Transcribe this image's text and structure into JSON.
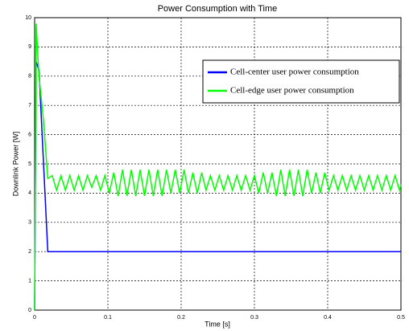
{
  "chart_data": {
    "type": "line",
    "title": "Power Consumption with Time",
    "xlabel": "Time [s]",
    "ylabel": "Downlink Power [W]",
    "xlim": [
      0,
      0.5
    ],
    "ylim": [
      0,
      10
    ],
    "xticks": [
      0,
      0.1,
      0.2,
      0.3,
      0.4,
      0.5
    ],
    "yticks": [
      0,
      1,
      2,
      3,
      4,
      5,
      6,
      7,
      8,
      9,
      10
    ],
    "grid": true,
    "legend": "upper right",
    "series": [
      {
        "name": "Cell-center user power consumption",
        "color": "#0000ff",
        "x": [
          0,
          0.002,
          0.006,
          0.018,
          0.5
        ],
        "values": [
          0,
          8.5,
          8.2,
          2,
          2
        ]
      },
      {
        "name": "Cell-edge user power consumption",
        "color": "#00ff00",
        "x": [
          0,
          0.002,
          0.006,
          0.012,
          0.018,
          0.024,
          0.03,
          0.036,
          0.042,
          0.048,
          0.054,
          0.06,
          0.066,
          0.072,
          0.078,
          0.084,
          0.09,
          0.096,
          0.102,
          0.108,
          0.114,
          0.12,
          0.126,
          0.132,
          0.138,
          0.144,
          0.15,
          0.156,
          0.162,
          0.168,
          0.174,
          0.18,
          0.186,
          0.192,
          0.198,
          0.204,
          0.21,
          0.216,
          0.222,
          0.228,
          0.234,
          0.24,
          0.246,
          0.252,
          0.258,
          0.264,
          0.27,
          0.276,
          0.282,
          0.288,
          0.294,
          0.3,
          0.306,
          0.312,
          0.318,
          0.324,
          0.33,
          0.336,
          0.342,
          0.348,
          0.354,
          0.36,
          0.366,
          0.372,
          0.378,
          0.384,
          0.39,
          0.396,
          0.402,
          0.408,
          0.414,
          0.42,
          0.426,
          0.432,
          0.438,
          0.444,
          0.45,
          0.456,
          0.462,
          0.468,
          0.474,
          0.48,
          0.486,
          0.492,
          0.498,
          0.5
        ],
        "values": [
          0,
          9.8,
          8,
          6.5,
          4.5,
          4.6,
          4.1,
          4.6,
          4.1,
          4.6,
          4.1,
          4.6,
          4.1,
          4.6,
          4.2,
          4.6,
          4.1,
          4.6,
          4.0,
          4.7,
          3.9,
          4.8,
          3.9,
          4.8,
          3.9,
          4.8,
          3.9,
          4.8,
          3.9,
          4.8,
          3.9,
          4.8,
          4.0,
          4.8,
          4.0,
          4.8,
          4.0,
          4.7,
          4.0,
          4.7,
          4.1,
          4.6,
          4.1,
          4.6,
          4.1,
          4.6,
          4.1,
          4.6,
          4.1,
          4.6,
          4.1,
          4.6,
          4.0,
          4.7,
          4.0,
          4.7,
          3.9,
          4.8,
          3.9,
          4.8,
          3.9,
          4.8,
          3.9,
          4.8,
          4.0,
          4.7,
          4.0,
          4.7,
          4.1,
          4.6,
          4.1,
          4.6,
          4.1,
          4.6,
          4.1,
          4.6,
          4.1,
          4.6,
          4.1,
          4.6,
          4.1,
          4.6,
          4.1,
          4.6,
          4.1,
          4.3
        ]
      }
    ]
  }
}
